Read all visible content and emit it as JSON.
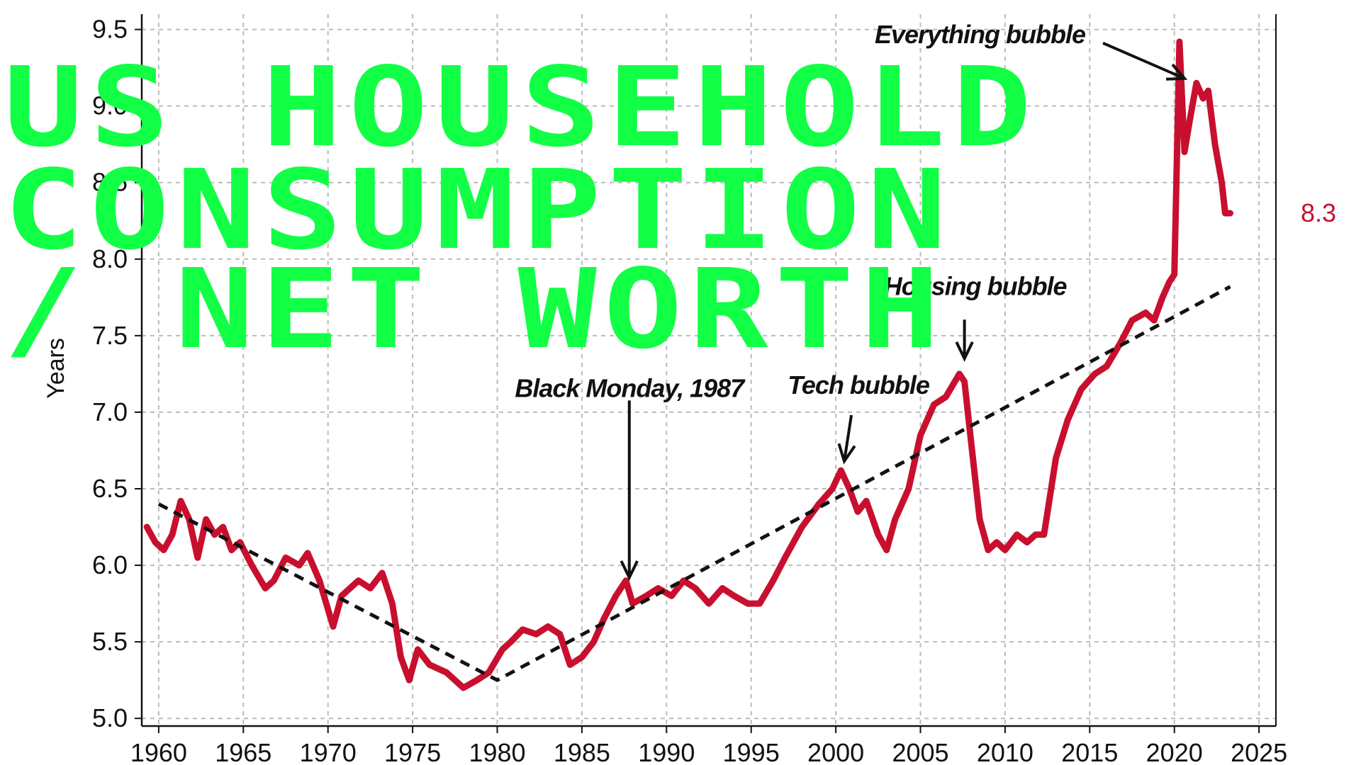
{
  "chart_data": {
    "type": "line",
    "title": "US HOUSEHOLD CONSUMPTION / NET WORTH",
    "title_lines": [
      "US HOUSEHOLD",
      "CONSUMPTION",
      "/ NET WORTH"
    ],
    "xlabel": "",
    "ylabel": "Years",
    "xlim": [
      1959,
      2026
    ],
    "ylim": [
      4.95,
      9.6
    ],
    "x_ticks": [
      1960,
      1965,
      1970,
      1975,
      1980,
      1985,
      1990,
      1995,
      2000,
      2005,
      2010,
      2015,
      2020,
      2025
    ],
    "y_ticks": [
      5.0,
      5.5,
      6.0,
      6.5,
      7.0,
      7.5,
      8.0,
      8.5,
      9.0,
      9.5
    ],
    "y_tick_labels": [
      "5.0",
      "5.5",
      "6.0",
      "6.5",
      "7.0",
      "7.5",
      "8.0",
      "8.5",
      "9.0",
      "9.5"
    ],
    "grid": true,
    "last_value_label": "8.3",
    "colors": {
      "series": "#c8102e",
      "trend": "#111111",
      "grid": "#bbbbbb",
      "title": "#11ff44"
    },
    "series": [
      {
        "name": "",
        "style": "solid",
        "x": [
          1959.3,
          1959.8,
          1960.3,
          1960.8,
          1961.3,
          1961.8,
          1962.3,
          1962.8,
          1963.3,
          1963.8,
          1964.3,
          1964.8,
          1965.5,
          1966.3,
          1966.8,
          1967.5,
          1968.3,
          1968.8,
          1969.5,
          1970.3,
          1970.8,
          1971.3,
          1971.8,
          1972.5,
          1973.2,
          1973.8,
          1974.3,
          1974.8,
          1975.3,
          1976.0,
          1977.0,
          1978.0,
          1978.8,
          1979.5,
          1980.3,
          1980.8,
          1981.5,
          1982.3,
          1983.0,
          1983.7,
          1984.3,
          1985.0,
          1985.7,
          1986.3,
          1987.0,
          1987.6,
          1988.0,
          1988.8,
          1989.5,
          1990.3,
          1991.0,
          1991.7,
          1992.5,
          1993.3,
          1994.0,
          1994.8,
          1995.5,
          1996.3,
          1997.0,
          1998.0,
          1999.0,
          1999.8,
          2000.3,
          2000.8,
          2001.3,
          2001.8,
          2002.5,
          2003.0,
          2003.5,
          2004.3,
          2005.0,
          2005.8,
          2006.5,
          2007.3,
          2007.6,
          2008.0,
          2008.5,
          2009.0,
          2009.5,
          2010.0,
          2010.7,
          2011.3,
          2011.8,
          2012.3,
          2013.0,
          2013.7,
          2014.5,
          2015.3,
          2016.0,
          2016.8,
          2017.5,
          2018.3,
          2018.8,
          2019.3,
          2019.7,
          2020.0,
          2020.3,
          2020.6,
          2020.9,
          2021.3,
          2021.7,
          2022.0,
          2022.4,
          2022.8,
          2023.0,
          2023.3
        ],
        "y": [
          6.25,
          6.15,
          6.1,
          6.2,
          6.42,
          6.3,
          6.05,
          6.3,
          6.2,
          6.25,
          6.1,
          6.15,
          6.0,
          5.85,
          5.9,
          6.05,
          6.0,
          6.08,
          5.9,
          5.6,
          5.8,
          5.85,
          5.9,
          5.85,
          5.95,
          5.75,
          5.4,
          5.25,
          5.45,
          5.35,
          5.3,
          5.2,
          5.25,
          5.3,
          5.45,
          5.5,
          5.58,
          5.55,
          5.6,
          5.55,
          5.35,
          5.4,
          5.5,
          5.65,
          5.8,
          5.9,
          5.75,
          5.8,
          5.85,
          5.8,
          5.9,
          5.85,
          5.75,
          5.85,
          5.8,
          5.75,
          5.75,
          5.9,
          6.05,
          6.25,
          6.4,
          6.5,
          6.62,
          6.5,
          6.35,
          6.42,
          6.2,
          6.1,
          6.3,
          6.5,
          6.85,
          7.05,
          7.1,
          7.25,
          7.2,
          6.8,
          6.3,
          6.1,
          6.15,
          6.1,
          6.2,
          6.15,
          6.2,
          6.2,
          6.7,
          6.95,
          7.15,
          7.25,
          7.3,
          7.45,
          7.6,
          7.65,
          7.6,
          7.75,
          7.85,
          7.9,
          9.42,
          8.7,
          8.9,
          9.15,
          9.05,
          9.1,
          8.75,
          8.5,
          8.3,
          8.3
        ]
      },
      {
        "name": "",
        "style": "dashed",
        "x": [
          1960.0,
          1980.0,
          2023.3
        ],
        "y": [
          6.4,
          5.25,
          7.82
        ]
      }
    ],
    "annotations": [
      {
        "text": "Black Monday, 1987",
        "x": 1987.8,
        "y": 5.92
      },
      {
        "text": "Tech bubble",
        "x": 2000.5,
        "y": 6.68
      },
      {
        "text": "Housing bubble",
        "x": 2007.6,
        "y": 7.35
      },
      {
        "text": "Everything bubble",
        "x": 2020.6,
        "y": 9.18
      }
    ]
  }
}
